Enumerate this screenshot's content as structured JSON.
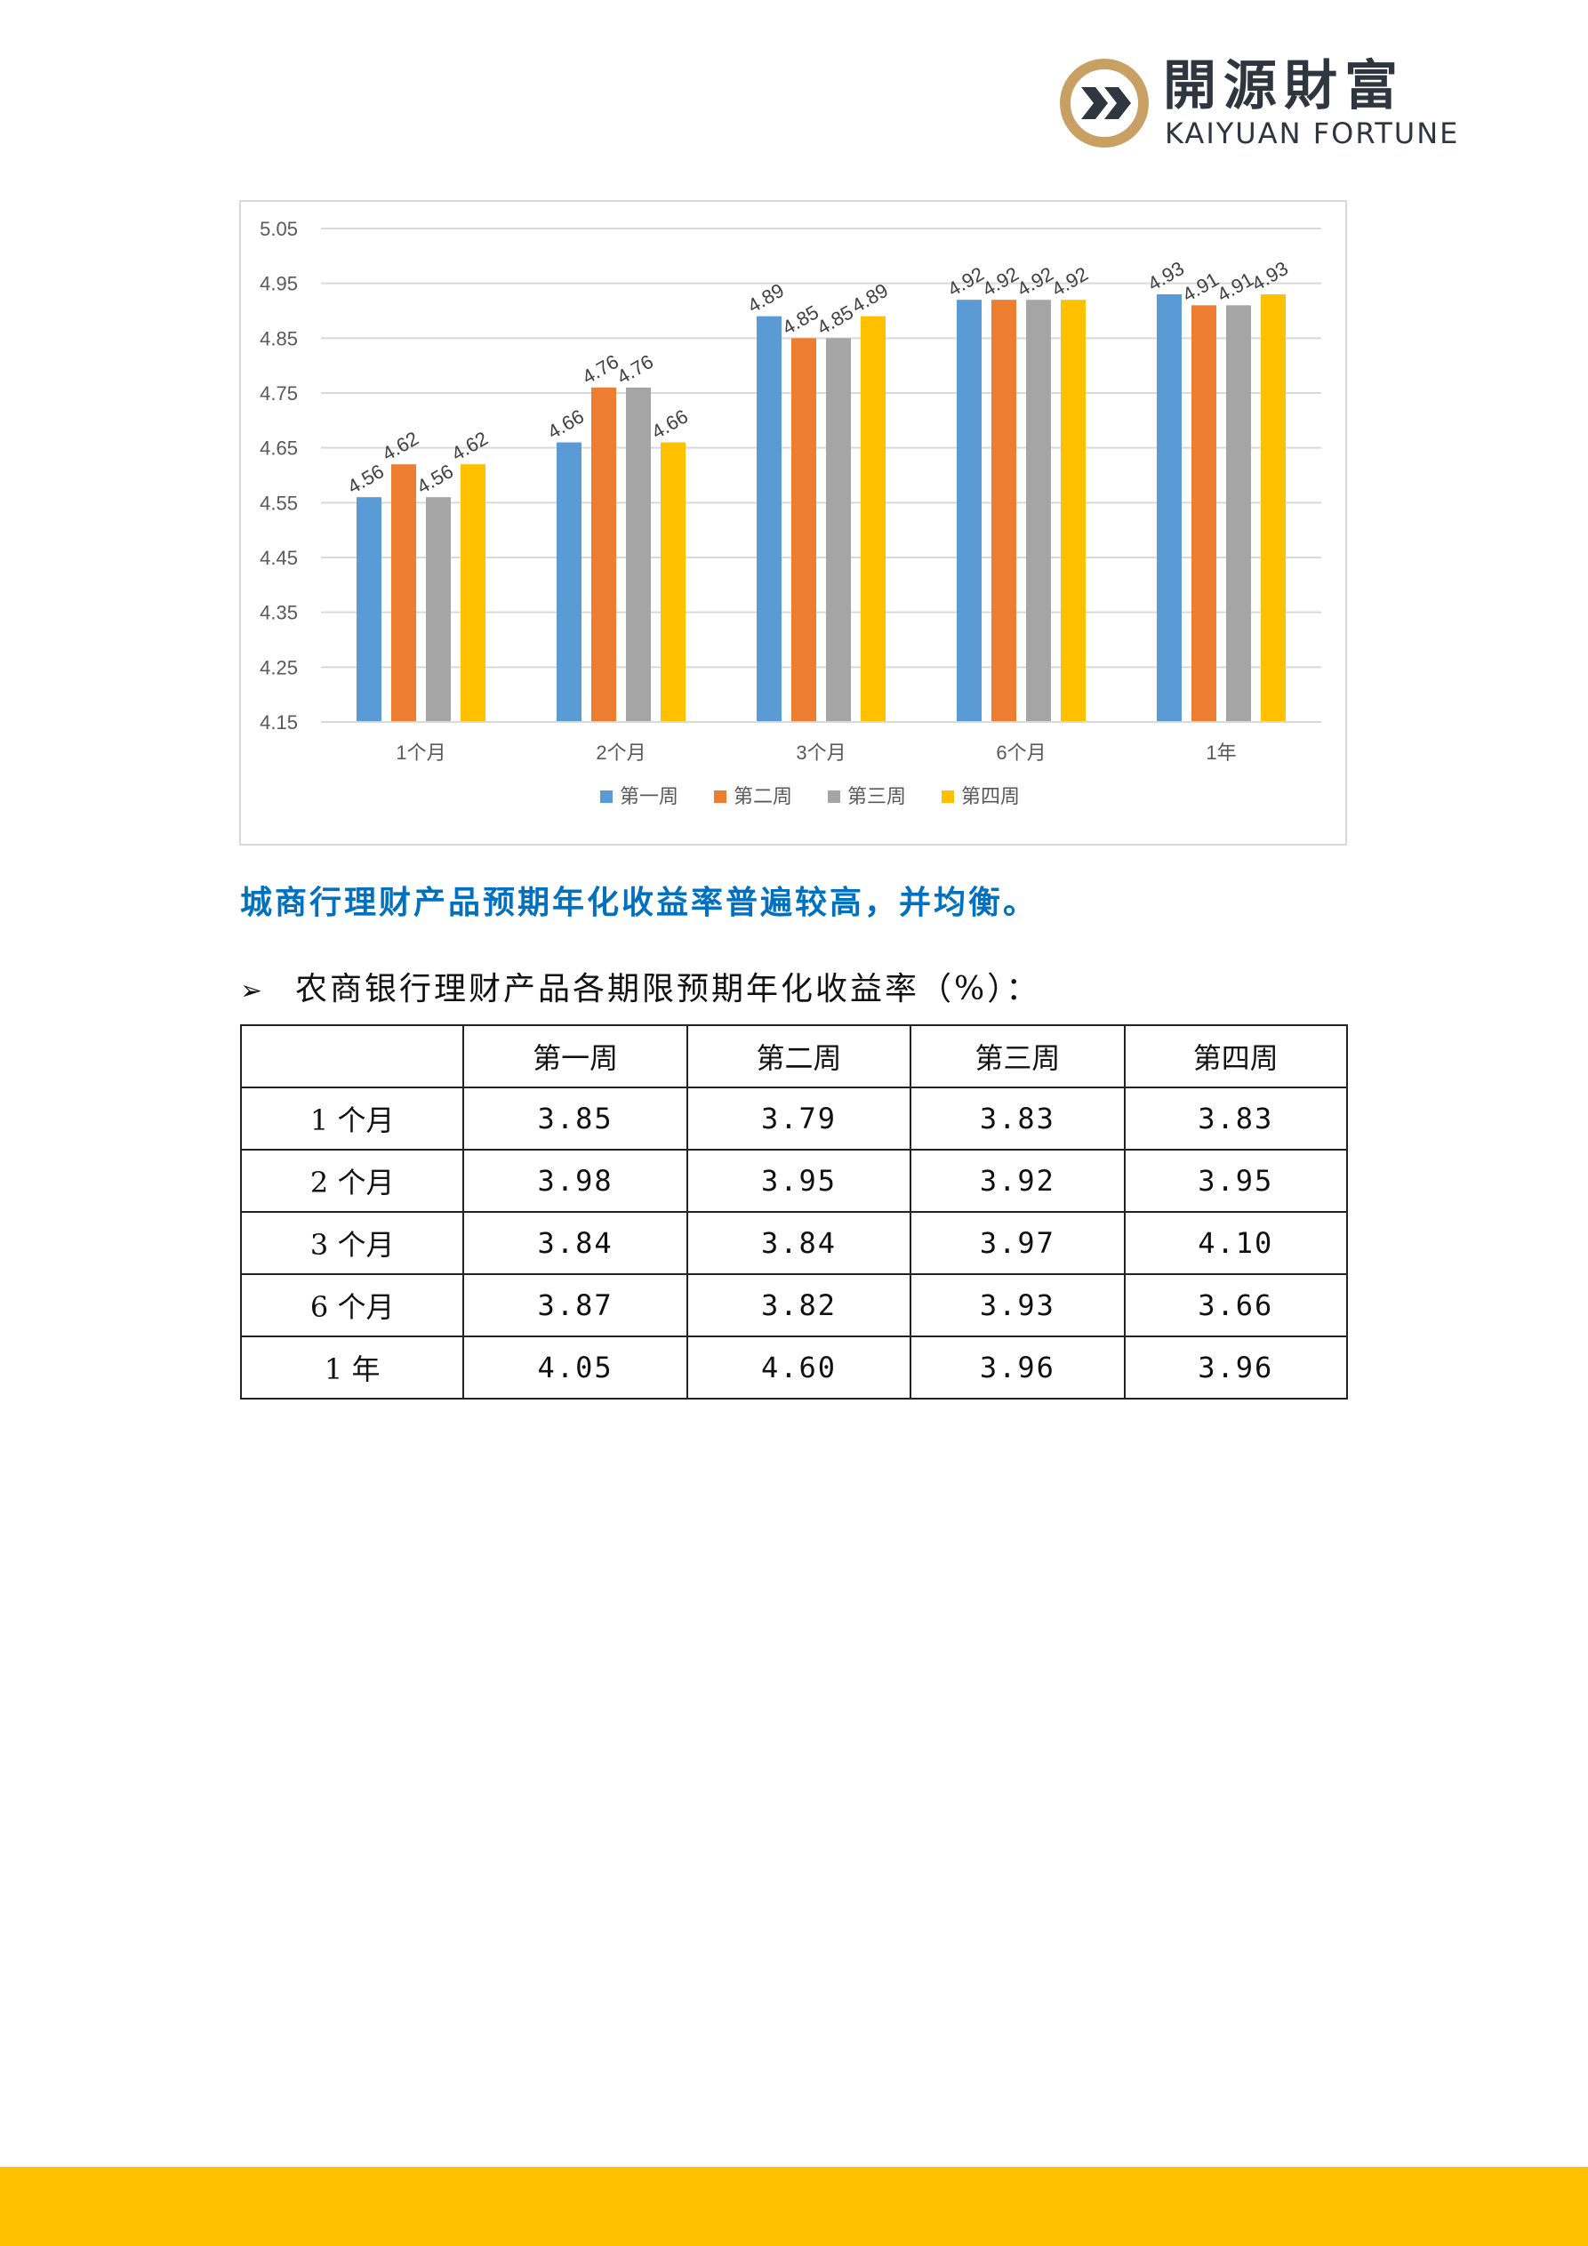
{
  "logo": {
    "name_cn": "開源財富",
    "name_en": "KAIYUAN FORTUNE",
    "colors": {
      "ring": "#c8a064",
      "mark": "#2f3640",
      "text": "#2f3640"
    }
  },
  "chart_data": {
    "type": "bar",
    "categories": [
      "1个月",
      "2个月",
      "3个月",
      "6个月",
      "1年"
    ],
    "series": [
      {
        "name": "第一周",
        "color": "#5b9bd5",
        "values": [
          4.56,
          4.66,
          4.89,
          4.92,
          4.93
        ]
      },
      {
        "name": "第二周",
        "color": "#ed7d31",
        "values": [
          4.62,
          4.76,
          4.85,
          4.92,
          4.91
        ]
      },
      {
        "name": "第三周",
        "color": "#a5a5a5",
        "values": [
          4.56,
          4.76,
          4.85,
          4.92,
          4.91
        ]
      },
      {
        "name": "第四周",
        "color": "#ffc000",
        "values": [
          4.62,
          4.66,
          4.89,
          4.92,
          4.93
        ]
      }
    ],
    "ylim": [
      4.15,
      5.05
    ],
    "yticks": [
      "4.15",
      "4.25",
      "4.35",
      "4.45",
      "4.55",
      "4.65",
      "4.75",
      "4.85",
      "4.95",
      "5.05"
    ],
    "grid": true,
    "legend_position": "bottom",
    "data_labels": true
  },
  "headline": "城商行理财产品预期年化收益率普遍较高，并均衡。",
  "bullet": {
    "icon": "arrow-bullet-icon",
    "text": "农商银行理财产品各期限预期年化收益率（%）："
  },
  "table": {
    "headers": [
      "",
      "第一周",
      "第二周",
      "第三周",
      "第四周"
    ],
    "rows": [
      {
        "label": "1 个月",
        "values": [
          "3.85",
          "3.79",
          "3.83",
          "3.83"
        ]
      },
      {
        "label": "2 个月",
        "values": [
          "3.98",
          "3.95",
          "3.92",
          "3.95"
        ]
      },
      {
        "label": "3 个月",
        "values": [
          "3.84",
          "3.84",
          "3.97",
          "4.10"
        ]
      },
      {
        "label": "6 个月",
        "values": [
          "3.87",
          "3.82",
          "3.93",
          "3.66"
        ]
      },
      {
        "label": "1 年",
        "values": [
          "4.05",
          "4.60",
          "3.96",
          "3.96"
        ]
      }
    ]
  },
  "footer": {
    "color": "#ffc000"
  }
}
